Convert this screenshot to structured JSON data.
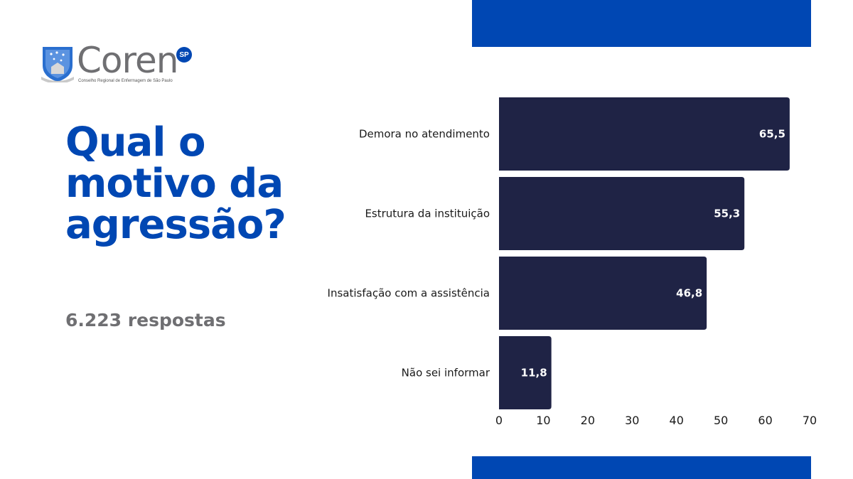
{
  "brand": {
    "name": "Coren",
    "badge": "SP",
    "subtitle": "Conselho Regional de Enfermagem de São Paulo"
  },
  "headline": "Qual o motivo da agressão?",
  "responses": "6.223 respostas",
  "colors": {
    "accent": "#0047b3",
    "bar": "#1f2345",
    "gray": "#6f6f72"
  },
  "chart_data": {
    "type": "bar",
    "orientation": "horizontal",
    "categories": [
      "Demora no atendimento",
      "Estrutura da instituição",
      "Insatisfação com a assistência",
      "Não sei informar"
    ],
    "values": [
      65.5,
      55.3,
      46.8,
      11.8
    ],
    "value_labels": [
      "65,5",
      "55,3",
      "46,8",
      "11,8"
    ],
    "xlim": [
      0,
      70
    ],
    "xticks": [
      0,
      10,
      20,
      30,
      40,
      50,
      60,
      70
    ],
    "grid": false,
    "legend": "none"
  }
}
